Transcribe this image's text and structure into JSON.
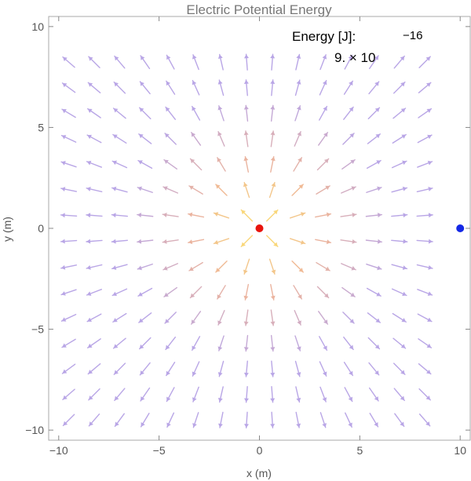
{
  "chart_data": {
    "type": "vector-field",
    "title": "Electric Potential Energy",
    "xlabel": "x (m)",
    "ylabel": "y (m)",
    "xlim": [
      -10.5,
      10.5
    ],
    "ylim": [
      -10.5,
      10.5
    ],
    "xticks": [
      {
        "value": -10,
        "label": "−10"
      },
      {
        "value": -5,
        "label": "−5"
      },
      {
        "value": 0,
        "label": "0"
      },
      {
        "value": 5,
        "label": "5"
      },
      {
        "value": 10,
        "label": "10"
      }
    ],
    "yticks": [
      {
        "value": -10,
        "label": "−10"
      },
      {
        "value": -5,
        "label": "−5"
      },
      {
        "value": 0,
        "label": "0"
      },
      {
        "value": 5,
        "label": "5"
      },
      {
        "value": 10,
        "label": "10"
      }
    ],
    "grid": false,
    "field": {
      "source": {
        "x": 0,
        "y": 0
      },
      "sample_min": -9.5,
      "sample_max": 9.5,
      "sample_step": 1.267,
      "direction": "radial-outward",
      "colors": {
        "near": "#f9d77a",
        "mid": "#eeb59a",
        "far": "#b9a6e6"
      }
    },
    "points": [
      {
        "name": "charge-red",
        "x": 0,
        "y": 0,
        "color": "#e8140c"
      },
      {
        "name": "charge-blue",
        "x": 10,
        "y": 0,
        "color": "#1428e6"
      }
    ],
    "energy_readout": {
      "label": "Energy [J]:",
      "mantissa": "9. × 10",
      "exponent": "−16"
    }
  }
}
